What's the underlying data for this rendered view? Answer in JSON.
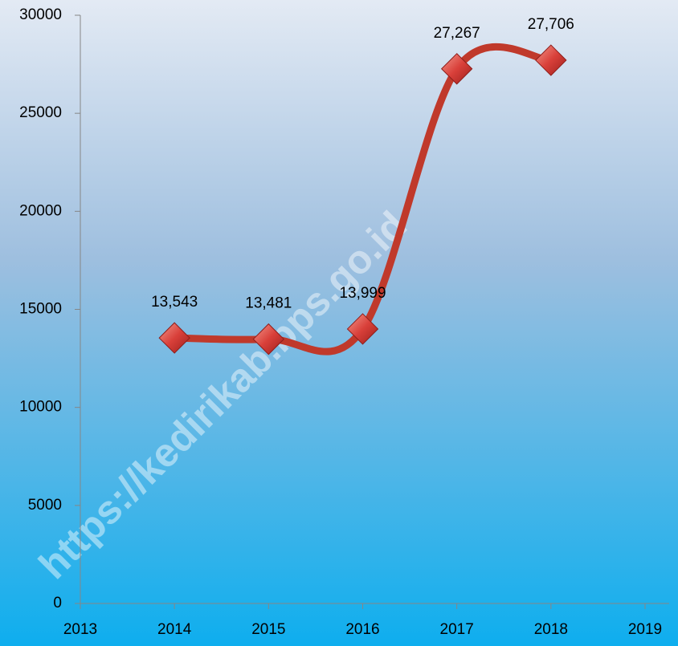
{
  "chart_data": {
    "type": "line",
    "x": [
      2014,
      2015,
      2016,
      2017,
      2018
    ],
    "series": [
      {
        "color": "#c0392b",
        "values": [
          13543,
          13481,
          13999,
          27267,
          27706
        ],
        "value_labels": [
          "13,543",
          "13,481",
          "13,999",
          "27,267",
          "27,706"
        ]
      }
    ],
    "xlim": [
      2013,
      2019
    ],
    "xticks": [
      2013,
      2014,
      2015,
      2016,
      2017,
      2018,
      2019
    ],
    "ylim": [
      0,
      30000
    ],
    "yticks": [
      0,
      5000,
      10000,
      15000,
      20000,
      25000,
      30000
    ],
    "smooth": true,
    "watermark": "https://kedirikab.bps.go.id"
  }
}
